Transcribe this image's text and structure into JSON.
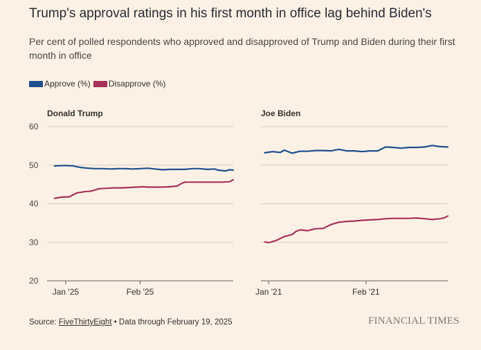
{
  "header": {
    "title": "Trump's approval ratings in his first month in office lag behind Biden's",
    "subtitle": "Per cent of polled respondents who approved and disapproved of Trump and Biden during their first month in office"
  },
  "legend": [
    {
      "label": "Approve (%)",
      "color": "#1d4f8c"
    },
    {
      "label": "Disapprove (%)",
      "color": "#a7325a"
    }
  ],
  "footer": {
    "source_prefix": "Source: ",
    "source_link": "FiveThirtyEight",
    "source_suffix": " • Data through February 19, 2025",
    "brand": "FINANCIAL TIMES"
  },
  "chart_data": [
    {
      "type": "line",
      "title": "Donald Trump",
      "ylim": [
        20,
        60
      ],
      "yticks": [
        20,
        30,
        40,
        50,
        60
      ],
      "xlim": [
        -5,
        45
      ],
      "xticks": [
        {
          "x": 0,
          "label": "Jan '25"
        },
        {
          "x": 20,
          "label": "Feb '25"
        }
      ],
      "series": [
        {
          "name": "Approve (%)",
          "color": "#1d4f8c",
          "points": [
            [
              -3,
              49.8
            ],
            [
              0,
              49.9
            ],
            [
              2,
              49.8
            ],
            [
              4,
              49.4
            ],
            [
              6,
              49.2
            ],
            [
              8,
              49.1
            ],
            [
              10,
              49.1
            ],
            [
              12,
              49.0
            ],
            [
              14,
              49.1
            ],
            [
              16,
              49.1
            ],
            [
              18,
              49.0
            ],
            [
              20,
              49.1
            ],
            [
              22,
              49.2
            ],
            [
              24,
              49.0
            ],
            [
              26,
              48.8
            ],
            [
              28,
              48.9
            ],
            [
              30,
              48.9
            ],
            [
              32,
              48.9
            ],
            [
              34,
              49.1
            ],
            [
              36,
              49.1
            ],
            [
              38,
              48.9
            ],
            [
              40,
              49.0
            ],
            [
              41,
              48.7
            ],
            [
              42,
              48.6
            ],
            [
              43,
              48.5
            ],
            [
              44,
              48.8
            ],
            [
              45,
              48.7
            ]
          ]
        },
        {
          "name": "Disapprove (%)",
          "color": "#a7325a",
          "points": [
            [
              -3,
              41.4
            ],
            [
              -1,
              41.7
            ],
            [
              1,
              41.8
            ],
            [
              3,
              42.8
            ],
            [
              5,
              43.1
            ],
            [
              7,
              43.3
            ],
            [
              9,
              43.9
            ],
            [
              11,
              44.0
            ],
            [
              13,
              44.1
            ],
            [
              15,
              44.1
            ],
            [
              17,
              44.2
            ],
            [
              19,
              44.3
            ],
            [
              21,
              44.4
            ],
            [
              22,
              44.3
            ],
            [
              24,
              44.3
            ],
            [
              26,
              44.3
            ],
            [
              28,
              44.4
            ],
            [
              30,
              44.6
            ],
            [
              31,
              45.2
            ],
            [
              32,
              45.6
            ],
            [
              34,
              45.6
            ],
            [
              36,
              45.6
            ],
            [
              38,
              45.6
            ],
            [
              40,
              45.6
            ],
            [
              42,
              45.6
            ],
            [
              44,
              45.7
            ],
            [
              45,
              46.2
            ]
          ]
        }
      ]
    },
    {
      "type": "line",
      "title": "Joe Biden",
      "ylim": [
        20,
        60
      ],
      "yticks": [
        20,
        30,
        40,
        50,
        60
      ],
      "xlim": [
        -2,
        46
      ],
      "xticks": [
        {
          "x": 0,
          "label": "Jan '21"
        },
        {
          "x": 25,
          "label": "Feb '21"
        }
      ],
      "series": [
        {
          "name": "Approve (%)",
          "color": "#1d4f8c",
          "points": [
            [
              -1,
              53.2
            ],
            [
              1,
              53.5
            ],
            [
              3,
              53.3
            ],
            [
              4,
              53.9
            ],
            [
              6,
              53.1
            ],
            [
              8,
              53.6
            ],
            [
              10,
              53.6
            ],
            [
              12,
              53.8
            ],
            [
              14,
              53.8
            ],
            [
              16,
              53.7
            ],
            [
              18,
              54.1
            ],
            [
              20,
              53.7
            ],
            [
              22,
              53.7
            ],
            [
              24,
              53.5
            ],
            [
              26,
              53.7
            ],
            [
              28,
              53.7
            ],
            [
              30,
              54.7
            ],
            [
              32,
              54.6
            ],
            [
              34,
              54.4
            ],
            [
              36,
              54.6
            ],
            [
              38,
              54.6
            ],
            [
              40,
              54.7
            ],
            [
              42,
              55.1
            ],
            [
              44,
              54.8
            ],
            [
              46,
              54.7
            ]
          ]
        },
        {
          "name": "Disapprove (%)",
          "color": "#a7325a",
          "points": [
            [
              -1,
              30.1
            ],
            [
              0,
              29.9
            ],
            [
              2,
              30.5
            ],
            [
              4,
              31.5
            ],
            [
              6,
              32.0
            ],
            [
              7,
              32.8
            ],
            [
              8,
              33.2
            ],
            [
              10,
              33.0
            ],
            [
              12,
              33.5
            ],
            [
              14,
              33.6
            ],
            [
              16,
              34.6
            ],
            [
              18,
              35.2
            ],
            [
              20,
              35.4
            ],
            [
              22,
              35.5
            ],
            [
              24,
              35.7
            ],
            [
              26,
              35.8
            ],
            [
              28,
              35.9
            ],
            [
              30,
              36.1
            ],
            [
              32,
              36.2
            ],
            [
              34,
              36.2
            ],
            [
              36,
              36.2
            ],
            [
              38,
              36.3
            ],
            [
              40,
              36.1
            ],
            [
              42,
              35.9
            ],
            [
              44,
              36.1
            ],
            [
              45,
              36.3
            ],
            [
              46,
              36.8
            ]
          ]
        }
      ]
    }
  ]
}
